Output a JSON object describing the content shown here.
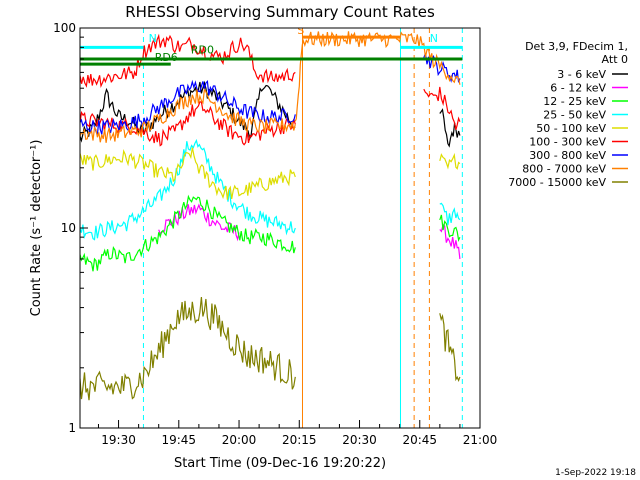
{
  "chart_data": {
    "type": "line",
    "title": "RHESSI Observing Summary Count Rates",
    "xlabel": "Start Time (09-Dec-16 19:20:22)",
    "ylabel": "Count Rate (s⁻¹ detector⁻¹)",
    "x_unit": "minutes after 19:00 UT on 09-Dec-16",
    "xlim": [
      20.4,
      120
    ],
    "ylim": [
      1,
      100
    ],
    "yscale": "log",
    "grid": false,
    "x_ticks": [
      {
        "value": 30,
        "label": "19:30"
      },
      {
        "value": 45,
        "label": "19:45"
      },
      {
        "value": 60,
        "label": "20:00"
      },
      {
        "value": 75,
        "label": "20:15"
      },
      {
        "value": 90,
        "label": "20:30"
      },
      {
        "value": 105,
        "label": "20:45"
      },
      {
        "value": 120,
        "label": "21:00"
      }
    ],
    "y_ticks": [
      {
        "value": 1,
        "label": "1"
      },
      {
        "value": 10,
        "label": "10"
      },
      {
        "value": 100,
        "label": "100"
      }
    ],
    "legend": {
      "placement": "right",
      "header": [
        "Det 3,9, FDecim 1,",
        "Att 0"
      ],
      "entries": [
        {
          "label": "3 - 6 keV",
          "color": "#000000"
        },
        {
          "label": "6 - 12 keV",
          "color": "#ff00ff"
        },
        {
          "label": "12 - 25 keV",
          "color": "#00ff00"
        },
        {
          "label": "25 - 50 keV",
          "color": "#00ffff"
        },
        {
          "label": "50 - 100 keV",
          "color": "#dddd00"
        },
        {
          "label": "100 - 300 keV",
          "color": "#ff0000"
        },
        {
          "label": "300 - 800 keV",
          "color": "#0000ff"
        },
        {
          "label": "800 - 7000 keV",
          "color": "#ff8000"
        },
        {
          "label": "7000 - 15000 keV",
          "color": "#808000"
        }
      ]
    },
    "series": [
      {
        "name": "3 - 6 keV",
        "color": "#000000",
        "segments": [
          [
            [
              20.4,
              28
            ],
            [
              24,
              32
            ],
            [
              27,
              46
            ],
            [
              30,
              36
            ],
            [
              33,
              34
            ],
            [
              36,
              30
            ],
            [
              40,
              36
            ],
            [
              44,
              42
            ],
            [
              48,
              48
            ],
            [
              51,
              50
            ],
            [
              54,
              46
            ],
            [
              57,
              40
            ],
            [
              60,
              34
            ],
            [
              63,
              30
            ],
            [
              66,
              54
            ],
            [
              69,
              44
            ],
            [
              72,
              36
            ],
            [
              74,
              32
            ]
          ],
          [
            [
              110,
              40
            ],
            [
              111,
              34
            ],
            [
              112,
              25
            ],
            [
              113,
              30
            ],
            [
              114,
              32
            ],
            [
              115,
              29
            ]
          ]
        ]
      },
      {
        "name": "6 - 12 keV",
        "color": "#ff00ff",
        "segments": [
          [
            [
              40,
              10
            ],
            [
              44,
              11
            ],
            [
              47,
              12
            ],
            [
              50,
              12.5
            ],
            [
              53,
              11
            ],
            [
              56,
              10
            ],
            [
              60,
              9.5
            ]
          ],
          [
            [
              110,
              10
            ],
            [
              112,
              9
            ],
            [
              114,
              8
            ],
            [
              115,
              7
            ]
          ]
        ]
      },
      {
        "name": "12 - 25 keV",
        "color": "#00ff00",
        "segments": [
          [
            [
              20.4,
              7
            ],
            [
              24,
              6.5
            ],
            [
              28,
              7.5
            ],
            [
              32,
              7
            ],
            [
              36,
              8
            ],
            [
              40,
              9
            ],
            [
              44,
              11
            ],
            [
              47,
              13
            ],
            [
              49,
              14
            ],
            [
              52,
              13
            ],
            [
              55,
              11
            ],
            [
              58,
              10
            ],
            [
              62,
              9
            ],
            [
              66,
              9
            ],
            [
              70,
              8.5
            ],
            [
              74,
              8
            ]
          ],
          [
            [
              110,
              11
            ],
            [
              112,
              10
            ],
            [
              114,
              9.5
            ],
            [
              115,
              9
            ]
          ]
        ]
      },
      {
        "name": "25 - 50 keV",
        "color": "#00ffff",
        "segments": [
          [
            [
              20.4,
              10
            ],
            [
              24,
              9.5
            ],
            [
              28,
              10
            ],
            [
              32,
              10.5
            ],
            [
              36,
              12
            ],
            [
              40,
              14
            ],
            [
              44,
              18
            ],
            [
              47,
              25
            ],
            [
              49,
              27
            ],
            [
              52,
              22
            ],
            [
              55,
              17
            ],
            [
              58,
              14
            ],
            [
              62,
              12
            ],
            [
              66,
              11
            ],
            [
              70,
              10.5
            ],
            [
              74,
              10
            ]
          ],
          [
            [
              110,
              13
            ],
            [
              112,
              11
            ],
            [
              114,
              12
            ],
            [
              115,
              11
            ]
          ]
        ]
      },
      {
        "name": "50 - 100 keV",
        "color": "#dddd00",
        "segments": [
          [
            [
              20.4,
              22
            ],
            [
              24,
              21
            ],
            [
              28,
              22
            ],
            [
              32,
              22.5
            ],
            [
              36,
              21
            ],
            [
              40,
              19
            ],
            [
              44,
              18
            ],
            [
              46,
              21
            ],
            [
              48,
              24
            ],
            [
              50,
              20
            ],
            [
              53,
              17
            ],
            [
              56,
              15
            ],
            [
              60,
              15
            ],
            [
              64,
              16
            ],
            [
              68,
              17
            ],
            [
              72,
              18
            ],
            [
              74,
              18
            ]
          ],
          [
            [
              110,
              22
            ],
            [
              112,
              20
            ],
            [
              114,
              22
            ],
            [
              115,
              21
            ]
          ]
        ]
      },
      {
        "name": "100 - 300 keV",
        "color": "#ff0000",
        "segments": [
          [
            [
              20.4,
              58
            ],
            [
              22,
              55
            ],
            [
              26,
              56
            ],
            [
              30,
              58
            ],
            [
              34,
              60
            ],
            [
              36,
              75
            ],
            [
              38,
              82
            ],
            [
              40,
              85
            ],
            [
              42,
              88
            ],
            [
              44,
              82
            ],
            [
              46,
              80
            ],
            [
              48,
              84
            ],
            [
              50,
              80
            ],
            [
              52,
              76
            ],
            [
              54,
              72
            ],
            [
              56,
              72
            ],
            [
              58,
              78
            ],
            [
              60,
              84
            ],
            [
              62,
              80
            ],
            [
              64,
              60
            ],
            [
              66,
              58
            ],
            [
              68,
              56
            ],
            [
              70,
              57
            ],
            [
              72,
              58
            ],
            [
              74,
              60
            ]
          ],
          [
            [
              20.4,
              35
            ],
            [
              28,
              33
            ],
            [
              34,
              32
            ],
            [
              40,
              28
            ],
            [
              44,
              30
            ],
            [
              48,
              38
            ],
            [
              51,
              40
            ],
            [
              54,
              35
            ],
            [
              58,
              30
            ],
            [
              62,
              28
            ],
            [
              66,
              30
            ],
            [
              70,
              32
            ],
            [
              74,
              33
            ]
          ],
          [
            [
              106,
              48
            ],
            [
              108,
              45
            ],
            [
              110,
              47
            ],
            [
              112,
              40
            ],
            [
              114,
              32
            ],
            [
              115,
              34
            ]
          ]
        ]
      },
      {
        "name": "300 - 800 keV",
        "color": "#0000ff",
        "segments": [
          [
            [
              20.4,
              33
            ],
            [
              24,
              32
            ],
            [
              28,
              32
            ],
            [
              32,
              33
            ],
            [
              36,
              35
            ],
            [
              40,
              40
            ],
            [
              44,
              46
            ],
            [
              48,
              50
            ],
            [
              51,
              52
            ],
            [
              54,
              48
            ],
            [
              58,
              42
            ],
            [
              62,
              38
            ],
            [
              66,
              36
            ],
            [
              70,
              36
            ],
            [
              74,
              37
            ]
          ],
          [
            [
              106,
              72
            ],
            [
              108,
              68
            ],
            [
              110,
              63
            ],
            [
              112,
              60
            ],
            [
              114,
              58
            ],
            [
              115,
              56
            ]
          ]
        ]
      },
      {
        "name": "800 - 7000 keV",
        "color": "#ff8000",
        "segments": [
          [
            [
              20.4,
              30
            ],
            [
              24,
              29.5
            ],
            [
              28,
              29
            ],
            [
              32,
              30
            ],
            [
              36,
              31
            ],
            [
              40,
              35
            ],
            [
              44,
              40
            ],
            [
              48,
              45
            ],
            [
              51,
              46
            ],
            [
              54,
              42
            ],
            [
              58,
              36
            ],
            [
              62,
              33
            ],
            [
              66,
              32
            ],
            [
              70,
              32.5
            ],
            [
              74,
              33
            ]
          ],
          [
            [
              74,
              33
            ],
            [
              74.5,
              40
            ],
            [
              75,
              55
            ],
            [
              75.5,
              75
            ],
            [
              76,
              88
            ],
            [
              100,
              88
            ],
            [
              104,
              88
            ],
            [
              106,
              80
            ],
            [
              108,
              70
            ],
            [
              110,
              65
            ],
            [
              112,
              60
            ],
            [
              114,
              55
            ],
            [
              115,
              52
            ]
          ]
        ]
      },
      {
        "name": "7000 - 15000 keV",
        "color": "#808000",
        "segments": [
          [
            [
              20.4,
              1.6
            ],
            [
              26,
              1.6
            ],
            [
              32,
              1.6
            ],
            [
              36,
              1.8
            ],
            [
              40,
              2.4
            ],
            [
              44,
              3.5
            ],
            [
              48,
              3.8
            ],
            [
              51,
              4.0
            ],
            [
              54,
              3.5
            ],
            [
              58,
              2.8
            ],
            [
              62,
              2.3
            ],
            [
              66,
              2.2
            ],
            [
              70,
              2.0
            ],
            [
              74,
              1.8
            ]
          ],
          [
            [
              110,
              3.5
            ],
            [
              111,
              3.0
            ],
            [
              112,
              2.6
            ],
            [
              113,
              2.2
            ],
            [
              114,
              2.0
            ],
            [
              115,
              1.8
            ]
          ]
        ]
      }
    ],
    "annotations": {
      "vertical_lines": [
        {
          "x": 20.4,
          "color": "#00ffff",
          "style": "solid"
        },
        {
          "x": 36.2,
          "color": "#00ffff",
          "style": "dashed"
        },
        {
          "x": 75.8,
          "color": "#ff8000",
          "style": "solid"
        },
        {
          "x": 100.2,
          "color": "#00ffff",
          "style": "solid"
        },
        {
          "x": 103.6,
          "color": "#ff8000",
          "style": "dashed"
        },
        {
          "x": 107.4,
          "color": "#ff8000",
          "style": "dashed"
        },
        {
          "x": 115.6,
          "color": "#00ffff",
          "style": "dashed"
        }
      ],
      "horizontal_bars": [
        {
          "x0": 20.4,
          "x1": 36.2,
          "y": 80,
          "color": "#00ffff"
        },
        {
          "x0": 100.2,
          "x1": 115.6,
          "y": 80,
          "color": "#00ffff"
        },
        {
          "x0": 75.8,
          "x1": 100.2,
          "y": 90,
          "color": "#ff8000"
        },
        {
          "x0": 20.4,
          "x1": 115.6,
          "y": 70,
          "color": "#008000"
        },
        {
          "x0": 20.4,
          "x1": 43,
          "y": 66,
          "color": "#008000"
        }
      ],
      "labels": [
        {
          "text": "N",
          "x": 37.5,
          "y": 82,
          "color": "#00ffff"
        },
        {
          "text": "S",
          "x": 74.5,
          "y": 90,
          "color": "#ff8000"
        },
        {
          "text": "N",
          "x": 107.5,
          "y": 82,
          "color": "#00ffff"
        },
        {
          "text": "RD0",
          "x": 48,
          "y": 72,
          "color": "#008000"
        },
        {
          "text": "RD6",
          "x": 39,
          "y": 66,
          "color": "#008000"
        }
      ]
    },
    "footer": "1-Sep-2022 19:18"
  }
}
